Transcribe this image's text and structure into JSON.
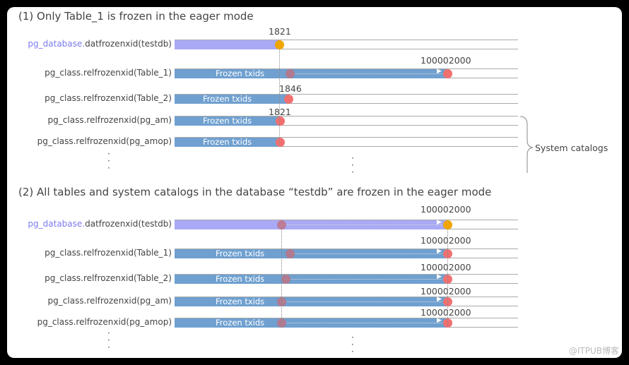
{
  "section1": {
    "title": "(1) Only Table_1 is frozen in the eager mode",
    "bracket_label": "System catalogs",
    "rows": [
      {
        "prefix": "pg_database.",
        "label": "datfrozenxid(testdb)",
        "value": "1821",
        "bar_text": "",
        "kind": "db"
      },
      {
        "prefix": "",
        "label": "pg_class.relfrozenxid(Table_1)",
        "value": "100002000",
        "bar_text": "Frozen txids",
        "kind": "table"
      },
      {
        "prefix": "",
        "label": "pg_class.relfrozenxid(Table_2)",
        "value": "1846",
        "bar_text": "Frozen txids",
        "kind": "table"
      },
      {
        "prefix": "",
        "label": "pg_class.relfrozenxid(pg_am)",
        "value": "1821",
        "bar_text": "Frozen txids",
        "kind": "table"
      },
      {
        "prefix": "",
        "label": "pg_class.relfrozenxid(pg_amop)",
        "value": "",
        "bar_text": "Frozen txids",
        "kind": "table"
      }
    ]
  },
  "section2": {
    "title": "(2) All tables and system catalogs in the database “testdb” are frozen in the eager mode",
    "rows": [
      {
        "prefix": "pg_database.",
        "label": "datfrozenxid(testdb)",
        "value": "100002000",
        "bar_text": "",
        "kind": "db"
      },
      {
        "prefix": "",
        "label": "pg_class.relfrozenxid(Table_1)",
        "value": "100002000",
        "bar_text": "Frozen txids",
        "kind": "table"
      },
      {
        "prefix": "",
        "label": "pg_class.relfrozenxid(Table_2)",
        "value": "100002000",
        "bar_text": "Frozen txids",
        "kind": "table"
      },
      {
        "prefix": "",
        "label": "pg_class.relfrozenxid(pg_am)",
        "value": "100002000",
        "bar_text": "Frozen txids",
        "kind": "table"
      },
      {
        "prefix": "",
        "label": "pg_class.relfrozenxid(pg_amop)",
        "value": "100002000",
        "bar_text": "Frozen txids",
        "kind": "table"
      }
    ]
  },
  "watermark": "@ITPUB博客",
  "colors": {
    "db_bar": "#a9a9f5",
    "table_bar": "#6fa0d0",
    "db_dot": "#f0a500",
    "table_dot": "#f07070"
  }
}
